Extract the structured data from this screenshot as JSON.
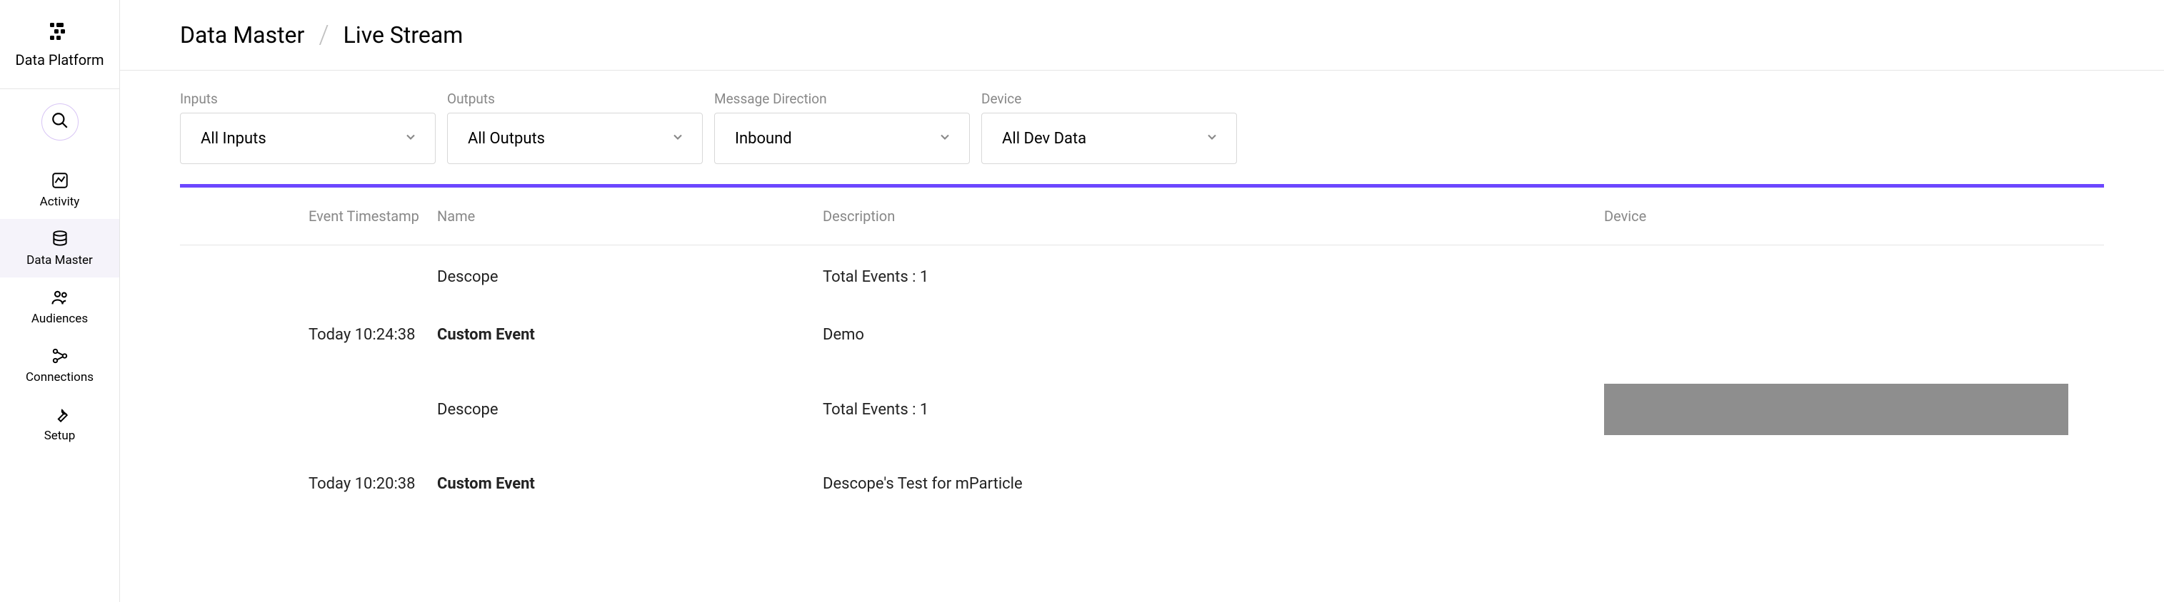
{
  "brand": "Data Platform",
  "sidebar": {
    "items": [
      {
        "label": "Activity"
      },
      {
        "label": "Data Master"
      },
      {
        "label": "Audiences"
      },
      {
        "label": "Connections"
      },
      {
        "label": "Setup"
      }
    ]
  },
  "breadcrumb": {
    "root": "Data Master",
    "page": "Live Stream"
  },
  "filters": {
    "inputs": {
      "label": "Inputs",
      "value": "All Inputs"
    },
    "outputs": {
      "label": "Outputs",
      "value": "All Outputs"
    },
    "direction": {
      "label": "Message Direction",
      "value": "Inbound"
    },
    "device": {
      "label": "Device",
      "value": "All Dev Data"
    }
  },
  "table": {
    "columns": {
      "timestamp": "Event Timestamp",
      "name": "Name",
      "description": "Description",
      "device": "Device"
    },
    "rows": [
      {
        "timestamp": "",
        "name": "Descope",
        "name_bold": false,
        "description": "Total Events : 1",
        "device_masked": false
      },
      {
        "timestamp": "Today 10:24:38",
        "name": "Custom Event",
        "name_bold": true,
        "description": "Demo",
        "device_masked": false
      },
      {
        "timestamp": "",
        "name": "Descope",
        "name_bold": false,
        "description": "Total Events : 1",
        "device_masked": true
      },
      {
        "timestamp": "Today 10:20:38",
        "name": "Custom Event",
        "name_bold": true,
        "description": "Descope's Test for mParticle",
        "device_masked": false
      }
    ]
  },
  "colors": {
    "accent": "#6c47ff",
    "border": "#e5e5e5",
    "muted_text": "#888888",
    "masked_block": "#8e8e8e",
    "search_ring": "#d8c5f5"
  }
}
